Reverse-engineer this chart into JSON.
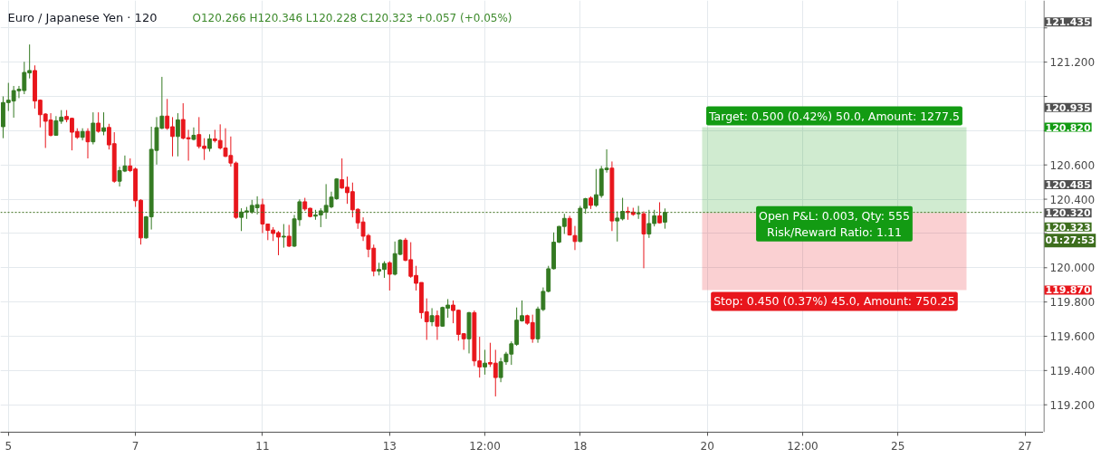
{
  "chart_data": {
    "type": "candlestick",
    "title": "Euro / Japanese Yen · 120",
    "subtitle": "O120.266 H120.346 L120.228 C120.323 +0.057 (+0.05%)",
    "categories": [
      null,
      "5",
      null,
      null,
      null,
      null,
      null,
      null,
      null,
      null,
      null,
      null,
      null,
      null,
      null,
      null,
      null,
      null,
      null,
      null,
      null,
      null,
      null,
      null,
      null,
      "7",
      null,
      null,
      null,
      null,
      null,
      null,
      null,
      null,
      null,
      null,
      null,
      null,
      null,
      null,
      null,
      null,
      null,
      null,
      null,
      null,
      null,
      null,
      null,
      "11",
      null,
      null,
      null,
      null,
      null,
      null,
      null,
      null,
      null,
      null,
      null,
      null,
      null,
      null,
      null,
      null,
      null,
      null,
      null,
      null,
      null,
      null,
      null,
      "13",
      null,
      null,
      null,
      null,
      null,
      null,
      null,
      null,
      null,
      null,
      null,
      null,
      null,
      null,
      null,
      null,
      null,
      "12:00",
      null,
      null,
      null,
      null,
      null,
      null,
      null,
      null,
      null,
      null,
      null,
      null,
      null,
      null,
      null,
      null,
      null,
      "18",
      null,
      null,
      null,
      null,
      null,
      null,
      null,
      null,
      null,
      null,
      null,
      null,
      null,
      null,
      null,
      null,
      null,
      null,
      null,
      null,
      null,
      null,
      null,
      "20",
      null,
      null,
      null,
      null,
      null,
      null,
      null,
      null,
      null,
      null,
      null,
      null,
      null,
      null,
      null,
      null,
      null,
      "12:00",
      null,
      null,
      null,
      null,
      null,
      null,
      null,
      null,
      null,
      null,
      null,
      null,
      null,
      null,
      null,
      null,
      null,
      "25",
      null,
      null,
      null,
      null,
      null,
      null,
      null,
      null,
      null,
      null,
      null,
      null,
      null,
      null,
      null,
      null,
      null,
      null,
      null,
      null,
      null,
      null,
      null,
      "27",
      null,
      null,
      null
    ],
    "ohlc": [
      [
        120.823,
        121.0,
        120.756,
        120.964
      ],
      [
        120.964,
        121.079,
        120.915,
        120.978
      ],
      [
        120.973,
        121.061,
        120.876,
        121.034
      ],
      [
        121.033,
        121.061,
        120.99,
        121.042
      ],
      [
        121.034,
        121.202,
        121.013,
        121.14
      ],
      [
        121.137,
        121.303,
        121.105,
        121.151
      ],
      [
        121.151,
        121.181,
        120.929,
        120.973
      ],
      [
        120.978,
        120.982,
        120.819,
        120.893
      ],
      [
        120.897,
        120.902,
        120.699,
        120.855
      ],
      [
        120.862,
        120.902,
        120.766,
        120.773
      ],
      [
        120.773,
        120.885,
        120.77,
        120.858
      ],
      [
        120.855,
        120.92,
        120.84,
        120.879
      ],
      [
        120.883,
        120.92,
        120.849,
        120.865
      ],
      [
        120.872,
        120.876,
        120.685,
        120.791
      ],
      [
        120.795,
        120.814,
        120.752,
        120.761
      ],
      [
        120.761,
        120.814,
        120.743,
        120.795
      ],
      [
        120.796,
        120.814,
        120.638,
        120.735
      ],
      [
        120.735,
        120.907,
        120.72,
        120.844
      ],
      [
        120.844,
        120.907,
        120.788,
        120.796
      ],
      [
        120.796,
        120.907,
        120.773,
        120.817
      ],
      [
        120.819,
        120.84,
        120.69,
        120.717
      ],
      [
        120.724,
        120.791,
        120.496,
        120.505
      ],
      [
        120.505,
        120.59,
        120.474,
        120.567
      ],
      [
        120.564,
        120.655,
        120.558,
        120.594
      ],
      [
        120.594,
        120.638,
        120.558,
        120.567
      ],
      [
        120.576,
        120.585,
        120.355,
        120.391
      ],
      [
        120.394,
        120.399,
        120.135,
        120.174
      ],
      [
        120.174,
        120.302,
        120.17,
        120.297
      ],
      [
        120.297,
        120.823,
        120.223,
        120.691
      ],
      [
        120.685,
        120.879,
        120.602,
        120.818
      ],
      [
        120.814,
        121.114,
        120.809,
        120.885
      ],
      [
        120.885,
        120.985,
        120.805,
        120.814
      ],
      [
        120.823,
        120.879,
        120.65,
        120.766
      ],
      [
        120.766,
        120.902,
        120.65,
        120.863
      ],
      [
        120.865,
        120.96,
        120.749,
        120.756
      ],
      [
        120.759,
        120.805,
        120.625,
        120.752
      ],
      [
        120.749,
        120.819,
        120.743,
        120.773
      ],
      [
        120.777,
        120.879,
        120.696,
        120.708
      ],
      [
        120.71,
        120.756,
        120.629,
        120.696
      ],
      [
        120.696,
        120.779,
        120.678,
        120.752
      ],
      [
        120.752,
        120.805,
        120.731,
        120.742
      ],
      [
        120.743,
        120.837,
        120.69,
        120.699
      ],
      [
        120.699,
        120.814,
        120.646,
        120.65
      ],
      [
        120.655,
        120.766,
        120.59,
        120.611
      ],
      [
        120.611,
        120.62,
        120.285,
        120.294
      ],
      [
        120.294,
        120.347,
        120.214,
        120.325
      ],
      [
        120.325,
        120.355,
        120.285,
        120.332
      ],
      [
        120.325,
        120.396,
        120.315,
        120.364
      ],
      [
        120.35,
        120.417,
        120.311,
        120.368
      ],
      [
        120.368,
        120.403,
        120.202,
        120.255
      ],
      [
        120.255,
        120.255,
        120.161,
        120.218
      ],
      [
        120.22,
        120.237,
        120.156,
        120.2
      ],
      [
        120.205,
        120.214,
        120.073,
        120.179
      ],
      [
        120.179,
        120.255,
        120.117,
        120.184
      ],
      [
        120.184,
        120.25,
        120.121,
        120.126
      ],
      [
        120.126,
        120.308,
        120.121,
        120.285
      ],
      [
        120.28,
        120.399,
        120.244,
        120.385
      ],
      [
        120.385,
        120.408,
        120.332,
        120.343
      ],
      [
        120.347,
        120.35,
        120.294,
        120.299
      ],
      [
        120.301,
        120.338,
        120.28,
        120.308
      ],
      [
        120.308,
        120.347,
        120.237,
        120.332
      ],
      [
        120.325,
        120.488,
        120.285,
        120.364
      ],
      [
        120.355,
        120.444,
        120.347,
        120.412
      ],
      [
        120.403,
        120.523,
        120.396,
        120.518
      ],
      [
        120.514,
        120.638,
        120.461,
        120.465
      ],
      [
        120.47,
        120.532,
        120.373,
        120.438
      ],
      [
        120.444,
        120.497,
        120.294,
        120.338
      ],
      [
        120.341,
        120.347,
        120.227,
        120.262
      ],
      [
        120.267,
        120.294,
        120.156,
        120.184
      ],
      [
        120.188,
        120.197,
        120.061,
        120.108
      ],
      [
        120.114,
        120.135,
        119.95,
        119.98
      ],
      [
        119.98,
        120.029,
        119.955,
        119.99
      ],
      [
        119.99,
        120.038,
        119.941,
        120.025
      ],
      [
        120.029,
        120.038,
        119.867,
        119.962
      ],
      [
        119.962,
        120.153,
        119.955,
        120.082
      ],
      [
        120.078,
        120.167,
        120.073,
        120.161
      ],
      [
        120.161,
        120.174,
        120.038,
        120.043
      ],
      [
        120.047,
        120.149,
        119.941,
        119.95
      ],
      [
        119.955,
        120.011,
        119.867,
        119.909
      ],
      [
        119.914,
        119.914,
        119.703,
        119.738
      ],
      [
        119.743,
        119.821,
        119.579,
        119.685
      ],
      [
        119.685,
        119.764,
        119.659,
        119.72
      ],
      [
        119.72,
        119.75,
        119.579,
        119.659
      ],
      [
        119.659,
        119.773,
        119.655,
        119.768
      ],
      [
        119.764,
        119.817,
        119.708,
        119.782
      ],
      [
        119.782,
        119.809,
        119.676,
        119.75
      ],
      [
        119.752,
        119.755,
        119.574,
        119.611
      ],
      [
        119.615,
        119.618,
        119.521,
        119.585
      ],
      [
        119.585,
        119.742,
        119.5,
        119.738
      ],
      [
        119.738,
        119.75,
        119.426,
        119.456
      ],
      [
        119.456,
        119.597,
        119.359,
        119.421
      ],
      [
        119.421,
        119.521,
        119.376,
        119.443
      ],
      [
        119.447,
        119.562,
        119.421,
        119.438
      ],
      [
        119.443,
        119.521,
        119.249,
        119.359
      ],
      [
        119.359,
        119.474,
        119.332,
        119.451
      ],
      [
        119.451,
        119.509,
        119.433,
        119.496
      ],
      [
        119.496,
        119.57,
        119.433,
        119.556
      ],
      [
        119.553,
        119.768,
        119.544,
        119.694
      ],
      [
        119.69,
        119.809,
        119.685,
        119.72
      ],
      [
        119.72,
        119.726,
        119.667,
        119.676
      ],
      [
        119.68,
        119.726,
        119.562,
        119.585
      ],
      [
        119.585,
        119.773,
        119.562,
        119.759
      ],
      [
        119.756,
        119.885,
        119.747,
        119.862
      ],
      [
        119.862,
        120.011,
        119.856,
        119.994
      ],
      [
        119.994,
        120.206,
        119.99,
        120.149
      ],
      [
        120.149,
        120.244,
        120.144,
        120.241
      ],
      [
        120.241,
        120.315,
        120.197,
        120.288
      ],
      [
        120.288,
        120.303,
        120.188,
        120.191
      ],
      [
        120.188,
        120.244,
        120.103,
        120.153
      ],
      [
        120.153,
        120.361,
        120.149,
        120.347
      ],
      [
        120.347,
        120.408,
        120.315,
        120.403
      ],
      [
        120.407,
        120.417,
        120.343,
        120.364
      ],
      [
        120.364,
        120.576,
        120.355,
        120.426
      ],
      [
        120.421,
        120.594,
        120.408,
        120.576
      ],
      [
        120.572,
        120.691,
        120.555,
        120.581
      ],
      [
        120.581,
        120.62,
        120.214,
        120.273
      ],
      [
        120.273,
        120.329,
        120.153,
        120.29
      ],
      [
        120.285,
        120.408,
        120.276,
        120.329
      ],
      [
        120.329,
        120.355,
        120.28,
        120.322
      ],
      [
        120.325,
        120.35,
        120.303,
        120.311
      ],
      [
        120.315,
        120.361,
        120.285,
        120.32
      ],
      [
        120.315,
        120.329,
        119.997,
        120.197
      ],
      [
        120.197,
        120.338,
        120.174,
        120.258
      ],
      [
        120.258,
        120.338,
        120.241,
        120.303
      ],
      [
        120.303,
        120.382,
        120.259,
        120.262
      ],
      [
        120.266,
        120.346,
        120.228,
        120.323
      ],
      null,
      null,
      null,
      null,
      null,
      null,
      null,
      null,
      null,
      null,
      null,
      null,
      null,
      null,
      null,
      null,
      null,
      null,
      null,
      null,
      null,
      null,
      null,
      null,
      null,
      null,
      null,
      null,
      null,
      null,
      null,
      null,
      null,
      null,
      null,
      null,
      null,
      null,
      null,
      null,
      null,
      null,
      null,
      null,
      null,
      null,
      null,
      null,
      null,
      null,
      null,
      null,
      null,
      null,
      null,
      null,
      null,
      null,
      null,
      null,
      null,
      null,
      null,
      null,
      null,
      null,
      null,
      null,
      null,
      null,
      null
    ],
    "colors": [
      "#347a22",
      "#347a22",
      "#347a22",
      "#347a22",
      "#347a22",
      "#347a22",
      "#e8161c",
      "#e8161c",
      "#e8161c",
      "#e8161c",
      "#347a22",
      "#347a22",
      "#e8161c",
      "#e8161c",
      "#e8161c",
      "#347a22",
      "#e8161c",
      "#347a22",
      "#e8161c",
      "#347a22",
      "#e8161c",
      "#e8161c",
      "#347a22",
      "#347a22",
      "#e8161c",
      "#e8161c",
      "#e8161c",
      "#347a22",
      "#347a22",
      "#347a22",
      "#347a22",
      "#e8161c",
      "#e8161c",
      "#347a22",
      "#e8161c",
      "#e8161c",
      "#347a22",
      "#e8161c",
      "#e8161c",
      "#347a22",
      "#e8161c",
      "#e8161c",
      "#e8161c",
      "#e8161c",
      "#e8161c",
      "#347a22",
      "#347a22",
      "#347a22",
      "#347a22",
      "#e8161c",
      "#e8161c",
      "#e8161c",
      "#e8161c",
      "#347a22",
      "#e8161c",
      "#347a22",
      "#347a22",
      "#e8161c",
      "#e8161c",
      "#347a22",
      "#347a22",
      "#347a22",
      "#347a22",
      "#347a22",
      "#e8161c",
      "#e8161c",
      "#e8161c",
      "#e8161c",
      "#e8161c",
      "#e8161c",
      "#e8161c",
      "#347a22",
      "#347a22",
      "#e8161c",
      "#347a22",
      "#347a22",
      "#e8161c",
      "#e8161c",
      "#e8161c",
      "#e8161c",
      "#e8161c",
      "#347a22",
      "#e8161c",
      "#347a22",
      "#347a22",
      "#e8161c",
      "#e8161c",
      "#e8161c",
      "#347a22",
      "#e8161c",
      "#e8161c",
      "#347a22",
      "#e8161c",
      "#e8161c",
      "#347a22",
      "#347a22",
      "#347a22",
      "#347a22",
      "#347a22",
      "#e8161c",
      "#e8161c",
      "#347a22",
      "#347a22",
      "#347a22",
      "#347a22",
      "#347a22",
      "#347a22",
      "#e8161c",
      "#e8161c",
      "#347a22",
      "#347a22",
      "#e8161c",
      "#347a22",
      "#347a22",
      "#347a22",
      "#e8161c",
      "#347a22",
      "#347a22",
      "#e8161c",
      "#e8161c",
      "#347a22",
      "#e8161c",
      "#347a22",
      "#347a22",
      "#e8161c",
      "#347a22",
      null,
      null,
      null,
      null,
      null,
      null,
      null,
      null,
      null,
      null,
      null,
      null,
      null,
      null,
      null,
      null,
      null,
      null,
      null,
      null,
      null,
      null,
      null,
      null,
      null,
      null,
      null,
      null,
      null,
      null,
      null,
      null,
      null,
      null,
      null,
      null,
      null,
      null,
      null,
      null,
      null,
      null,
      null,
      null,
      null,
      null,
      null,
      null,
      null,
      null,
      null,
      null,
      null,
      null,
      null,
      null,
      null,
      null,
      null,
      null,
      null,
      null,
      null,
      null,
      null,
      null,
      null,
      null,
      null,
      null,
      null
    ],
    "ylim": [
      119.04,
      121.56
    ],
    "yticks": [
      {
        "value": 119.2,
        "label": "119.200"
      },
      {
        "value": 119.4,
        "label": "119.400"
      },
      {
        "value": 119.6,
        "label": "119.600"
      },
      {
        "value": 119.8,
        "label": "119.800"
      },
      {
        "value": 120.0,
        "label": "120.000"
      },
      {
        "value": 120.2,
        "label": null
      },
      {
        "value": 120.4,
        "label": "120.400"
      },
      {
        "value": 120.6,
        "label": "120.600"
      },
      {
        "value": 120.8,
        "label": null
      },
      {
        "value": 121.0,
        "label": null
      },
      {
        "value": 121.2,
        "label": "121.200"
      },
      {
        "value": 121.4,
        "label": null
      }
    ],
    "y2lim": [
      119.04,
      121.56
    ],
    "y2ticks": [
      {
        "value": 121.435,
        "label": "121.435"
      },
      {
        "value": 120.935,
        "label": "120.935"
      },
      {
        "value": 120.82,
        "label": "120.820"
      },
      {
        "value": 120.485,
        "label": "120.485"
      },
      {
        "value": 120.32,
        "label": "120.320"
      },
      {
        "value": 119.87,
        "label": "119.870"
      }
    ],
    "grid": true,
    "ref_lines": [
      {
        "axis": "y",
        "value": 120.323,
        "label": "120.323",
        "color": "#3d6e1d",
        "line_style": "dotted"
      }
    ],
    "bands": [
      {
        "axis": "y",
        "from": 120.32,
        "to": 120.82,
        "label": "Target: 0.500 (0.42%) 50.0, Amount: 1277.5",
        "color": "#139b13"
      },
      {
        "axis": "y",
        "from": 119.87,
        "to": 120.32,
        "label": "Stop: 0.450 (0.37%) 45.0, Amount: 750.25",
        "color": "#e8161c"
      }
    ],
    "annotations": [
      "Open P&L: 0.003, Qty: 555\nRisk/Reward Ratio: 1.11",
      "01:27:53"
    ]
  }
}
